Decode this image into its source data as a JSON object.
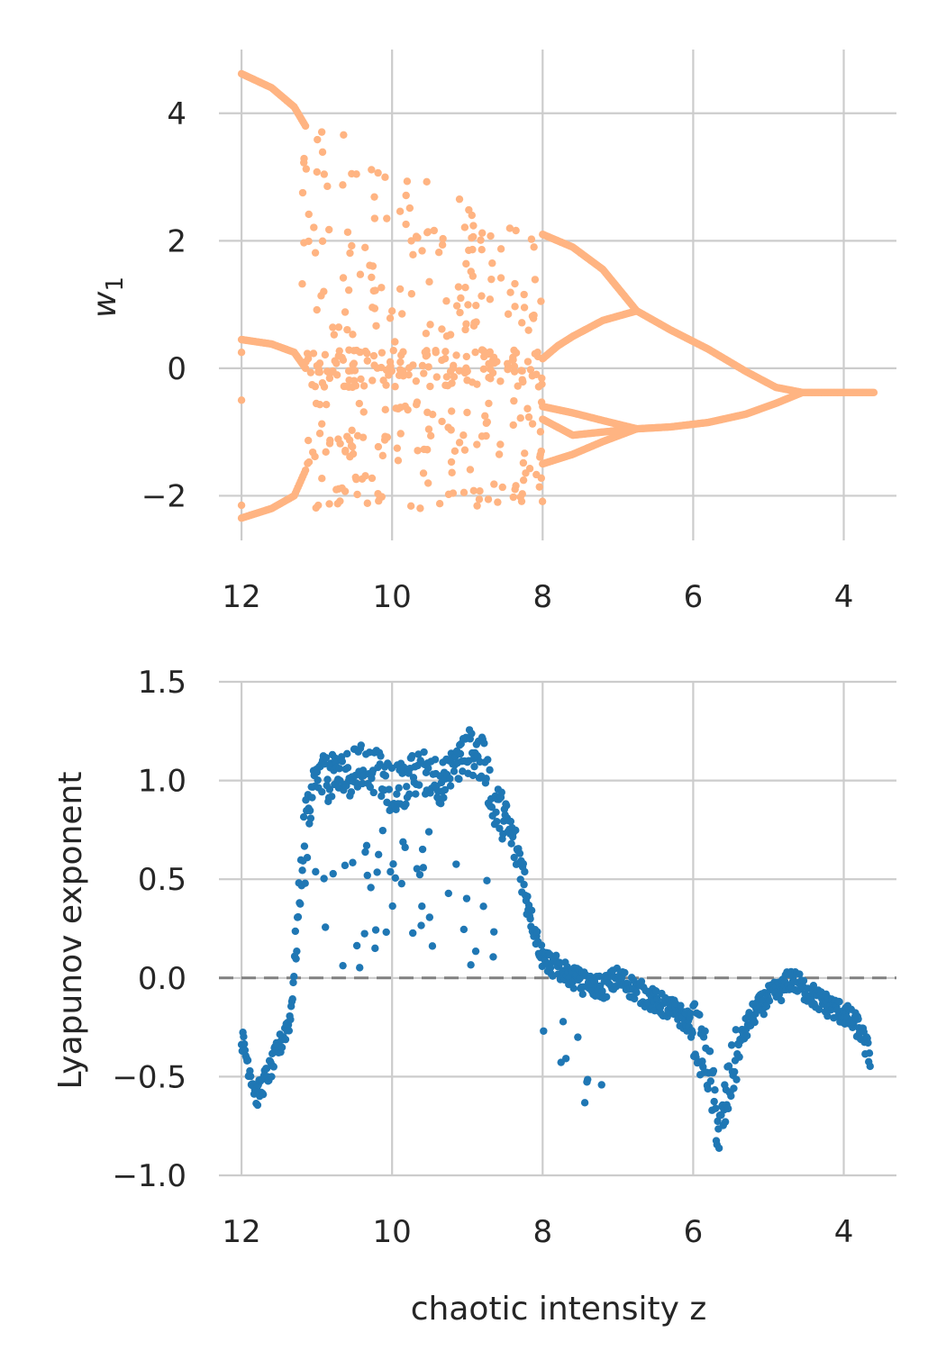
{
  "chart_data": [
    {
      "type": "scatter",
      "name": "bifurcation-diagram",
      "title": "",
      "xlabel": "",
      "ylabel": "w",
      "ylabel_subscript": "1",
      "xlim": [
        12.3,
        3.3
      ],
      "ylim": [
        -2.7,
        5.0
      ],
      "x_inverted": true,
      "xticks": [
        12,
        10,
        8,
        6,
        4
      ],
      "xtick_labels": [
        "12",
        "10",
        "8",
        "6",
        "4"
      ],
      "yticks": [
        -2,
        0,
        2,
        4
      ],
      "ytick_labels": [
        "−2",
        "0",
        "2",
        "4"
      ],
      "grid": true,
      "color": "#ffb482",
      "periodic_branches": [
        {
          "x": [
            12.0,
            11.6,
            11.3,
            11.15
          ],
          "y": [
            4.62,
            4.4,
            4.1,
            3.8
          ]
        },
        {
          "x": [
            12.0,
            11.6,
            11.3,
            11.15
          ],
          "y": [
            0.45,
            0.38,
            0.25,
            0.0
          ]
        },
        {
          "x": [
            12.0,
            11.6,
            11.3,
            11.15
          ],
          "y": [
            -2.35,
            -2.2,
            -2.0,
            -1.6
          ]
        },
        {
          "x": [
            8.0,
            7.6,
            7.2,
            6.75,
            6.3,
            5.8,
            5.3,
            4.9,
            4.55
          ],
          "y": [
            2.1,
            1.9,
            1.55,
            0.9,
            0.6,
            0.3,
            -0.05,
            -0.3,
            -0.38
          ]
        },
        {
          "x": [
            8.0,
            7.8,
            7.6,
            7.2,
            6.75
          ],
          "y": [
            0.15,
            0.35,
            0.5,
            0.75,
            0.9
          ]
        },
        {
          "x": [
            8.0,
            7.6,
            7.2,
            6.75,
            6.3,
            5.8,
            5.3,
            4.9,
            4.55
          ],
          "y": [
            -0.6,
            -0.7,
            -0.82,
            -0.95,
            -0.92,
            -0.85,
            -0.72,
            -0.55,
            -0.38
          ]
        },
        {
          "x": [
            8.0,
            7.6,
            7.2,
            6.75
          ],
          "y": [
            -1.5,
            -1.35,
            -1.15,
            -0.95
          ]
        },
        {
          "x": [
            8.0,
            7.6,
            7.2,
            6.75
          ],
          "y": [
            -0.8,
            -1.05,
            -1.0,
            -0.95
          ]
        },
        {
          "x": [
            4.55,
            4.2,
            3.6
          ],
          "y": [
            -0.38,
            -0.38,
            -0.38
          ]
        }
      ],
      "chaotic_region": {
        "x_range": [
          8.0,
          11.2
        ],
        "bands": [
          [
            -2.2,
            -0.5
          ],
          [
            -0.3,
            0.3
          ],
          [
            0.9,
            4.0
          ]
        ]
      }
    },
    {
      "type": "scatter",
      "name": "lyapunov-exponent",
      "title": "",
      "xlabel": "chaotic intensity z",
      "ylabel": "Lyapunov exponent",
      "xlim": [
        12.3,
        3.3
      ],
      "ylim": [
        -1.0,
        1.5
      ],
      "x_inverted": true,
      "xticks": [
        12,
        10,
        8,
        6,
        4
      ],
      "xtick_labels": [
        "12",
        "10",
        "8",
        "6",
        "4"
      ],
      "yticks": [
        -1.0,
        -0.5,
        0.0,
        0.5,
        1.0,
        1.5
      ],
      "ytick_labels": [
        "−1.0",
        "−0.5",
        "0.0",
        "0.5",
        "1.0",
        "1.5"
      ],
      "grid": true,
      "color": "#1f77b4",
      "reference_line": {
        "y": 0.0,
        "style": "dashed",
        "color": "#808080"
      },
      "trend": {
        "x": [
          12.0,
          11.8,
          11.6,
          11.5,
          11.35,
          11.25,
          11.15,
          11.0,
          10.7,
          10.3,
          10.0,
          9.7,
          9.5,
          9.3,
          9.1,
          8.95,
          8.8,
          8.65,
          8.5,
          8.3,
          8.15,
          8.0,
          7.8,
          7.5,
          7.2,
          7.0,
          6.8,
          6.5,
          6.2,
          6.0,
          5.8,
          5.65,
          5.5,
          5.35,
          5.2,
          5.0,
          4.8,
          4.7,
          4.55,
          4.3,
          4.0,
          3.8,
          3.65
        ],
        "y": [
          -0.3,
          -0.6,
          -0.45,
          -0.35,
          -0.2,
          0.3,
          0.85,
          1.0,
          1.02,
          1.08,
          0.95,
          1.02,
          1.05,
          0.98,
          1.1,
          1.15,
          1.1,
          0.9,
          0.8,
          0.6,
          0.3,
          0.1,
          0.05,
          -0.02,
          -0.05,
          0.0,
          -0.05,
          -0.12,
          -0.18,
          -0.25,
          -0.45,
          -0.8,
          -0.5,
          -0.3,
          -0.18,
          -0.1,
          -0.05,
          0.0,
          -0.05,
          -0.12,
          -0.18,
          -0.25,
          -0.4
        ]
      }
    }
  ]
}
